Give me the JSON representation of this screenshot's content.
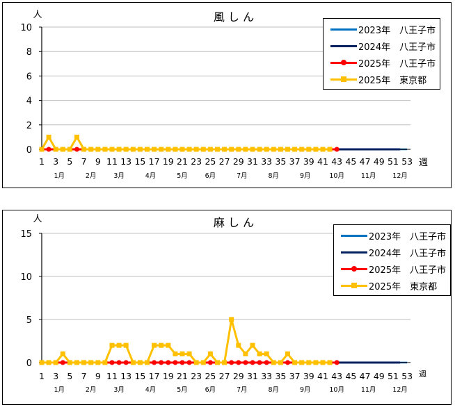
{
  "chart_data": [
    {
      "type": "line",
      "title": "風しん",
      "ylabel": "人",
      "xlabel": "週",
      "ylim": [
        0,
        10
      ],
      "yticks": [
        0,
        2,
        4,
        6,
        8,
        10
      ],
      "xticks": [
        1,
        3,
        5,
        7,
        9,
        11,
        13,
        15,
        17,
        19,
        21,
        23,
        25,
        27,
        29,
        31,
        33,
        35,
        37,
        39,
        41,
        43,
        45,
        47,
        49,
        51,
        53
      ],
      "months": [
        {
          "label": "1月",
          "week": 3.5
        },
        {
          "label": "2月",
          "week": 8
        },
        {
          "label": "3月",
          "week": 12
        },
        {
          "label": "4月",
          "week": 16.5
        },
        {
          "label": "5月",
          "week": 21
        },
        {
          "label": "6月",
          "week": 25
        },
        {
          "label": "7月",
          "week": 29.5
        },
        {
          "label": "8月",
          "week": 34
        },
        {
          "label": "9月",
          "week": 38.5
        },
        {
          "label": "10月",
          "week": 43
        },
        {
          "label": "11月",
          "week": 47.5
        },
        {
          "label": "12月",
          "week": 52
        }
      ],
      "grid": true,
      "legend_position": "upper right",
      "series": [
        {
          "name": "2023年　八王子市",
          "color": "#0070C0",
          "marker": "none",
          "x_start": 1,
          "values": [
            0,
            0,
            0,
            0,
            0,
            0,
            0,
            0,
            0,
            0,
            0,
            0,
            0,
            0,
            0,
            0,
            0,
            0,
            0,
            0,
            0,
            0,
            0,
            0,
            0,
            0,
            0,
            0,
            0,
            0,
            0,
            0,
            0,
            0,
            0,
            0,
            0,
            0,
            0,
            0,
            0,
            0,
            0,
            0,
            0,
            0,
            0,
            0,
            0,
            0,
            0,
            0,
            0
          ]
        },
        {
          "name": "2024年　八王子市",
          "color": "#002060",
          "marker": "none",
          "x_start": 1,
          "values": [
            0,
            0,
            0,
            0,
            0,
            0,
            0,
            0,
            0,
            0,
            0,
            0,
            0,
            0,
            0,
            0,
            0,
            0,
            0,
            0,
            0,
            0,
            0,
            0,
            0,
            0,
            0,
            0,
            0,
            0,
            0,
            0,
            0,
            0,
            0,
            0,
            0,
            0,
            0,
            0,
            0,
            0,
            0,
            0,
            0,
            0,
            0,
            0,
            0,
            0,
            0,
            0
          ]
        },
        {
          "name": "2025年　八王子市",
          "color": "#FF0000",
          "marker": "circle",
          "x_start": 1,
          "values": [
            0,
            0,
            0,
            0,
            0,
            0,
            0,
            0,
            0,
            0,
            0,
            0,
            0,
            0,
            0,
            0,
            0,
            0,
            0,
            0,
            0,
            0,
            0,
            0,
            0,
            0,
            0,
            0,
            0,
            0,
            0,
            0,
            0,
            0,
            0,
            0,
            0,
            0,
            0,
            0,
            0,
            0,
            0
          ]
        },
        {
          "name": "2025年　東京都",
          "color": "#FFC000",
          "marker": "square",
          "x_start": 1,
          "values": [
            0,
            1,
            0,
            0,
            0,
            1,
            0,
            0,
            0,
            0,
            0,
            0,
            0,
            0,
            0,
            0,
            0,
            0,
            0,
            0,
            0,
            0,
            0,
            0,
            0,
            0,
            0,
            0,
            0,
            0,
            0,
            0,
            0,
            0,
            0,
            0,
            0,
            0,
            0,
            0,
            0,
            0
          ]
        }
      ]
    },
    {
      "type": "line",
      "title": "麻しん",
      "ylabel": "人",
      "xlabel": "週",
      "ylim": [
        0,
        15
      ],
      "yticks": [
        0,
        5,
        10,
        15
      ],
      "xticks": [
        1,
        3,
        5,
        7,
        9,
        11,
        13,
        15,
        17,
        19,
        21,
        23,
        25,
        27,
        29,
        31,
        33,
        35,
        37,
        39,
        41,
        43,
        45,
        47,
        49,
        51,
        53
      ],
      "months": [
        {
          "label": "1月",
          "week": 3.5
        },
        {
          "label": "2月",
          "week": 8
        },
        {
          "label": "3月",
          "week": 12
        },
        {
          "label": "4月",
          "week": 16.5
        },
        {
          "label": "5月",
          "week": 21
        },
        {
          "label": "6月",
          "week": 25
        },
        {
          "label": "7月",
          "week": 29.5
        },
        {
          "label": "8月",
          "week": 34
        },
        {
          "label": "9月",
          "week": 38.5
        },
        {
          "label": "10月",
          "week": 43
        },
        {
          "label": "11月",
          "week": 47.5
        },
        {
          "label": "12月",
          "week": 52
        }
      ],
      "grid": true,
      "legend_position": "upper right",
      "series": [
        {
          "name": "2023年　八王子市",
          "color": "#0070C0",
          "marker": "none",
          "x_start": 1,
          "values": [
            0,
            0,
            0,
            0,
            0,
            0,
            0,
            0,
            0,
            0,
            0,
            0,
            0,
            0,
            0,
            0,
            0,
            0,
            0,
            0,
            0,
            0,
            0,
            0,
            0,
            0,
            0,
            0,
            0,
            0,
            0,
            0,
            0,
            0,
            0,
            0,
            0,
            0,
            0,
            0,
            0,
            0,
            0,
            0,
            0,
            0,
            0,
            0,
            0,
            0,
            0,
            0,
            0
          ]
        },
        {
          "name": "2024年　八王子市",
          "color": "#002060",
          "marker": "none",
          "x_start": 1,
          "values": [
            0,
            0,
            0,
            0,
            0,
            0,
            0,
            0,
            0,
            0,
            0,
            0,
            0,
            0,
            0,
            0,
            0,
            0,
            0,
            0,
            0,
            0,
            0,
            0,
            0,
            0,
            0,
            0,
            0,
            0,
            0,
            0,
            0,
            0,
            0,
            0,
            0,
            0,
            0,
            0,
            0,
            0,
            0,
            0,
            0,
            0,
            0,
            0,
            0,
            0,
            0,
            0
          ]
        },
        {
          "name": "2025年　八王子市",
          "color": "#FF0000",
          "marker": "circle",
          "x_start": 1,
          "values": [
            0,
            0,
            0,
            0,
            0,
            0,
            0,
            0,
            0,
            0,
            0,
            0,
            0,
            0,
            0,
            0,
            0,
            0,
            0,
            0,
            0,
            0,
            0,
            0,
            0,
            0,
            0,
            0,
            0,
            0,
            0,
            0,
            0,
            0,
            0,
            0,
            0,
            0,
            0,
            0,
            0,
            0,
            0
          ]
        },
        {
          "name": "2025年　東京都",
          "color": "#FFC000",
          "marker": "square",
          "x_start": 1,
          "values": [
            0,
            0,
            0,
            1,
            0,
            0,
            0,
            0,
            0,
            0,
            2,
            2,
            2,
            0,
            0,
            0,
            2,
            2,
            2,
            1,
            1,
            1,
            0,
            0,
            1,
            0,
            0,
            5,
            2,
            1,
            2,
            1,
            1,
            0,
            0,
            1,
            0,
            0,
            0,
            0,
            0,
            0
          ]
        }
      ]
    }
  ]
}
